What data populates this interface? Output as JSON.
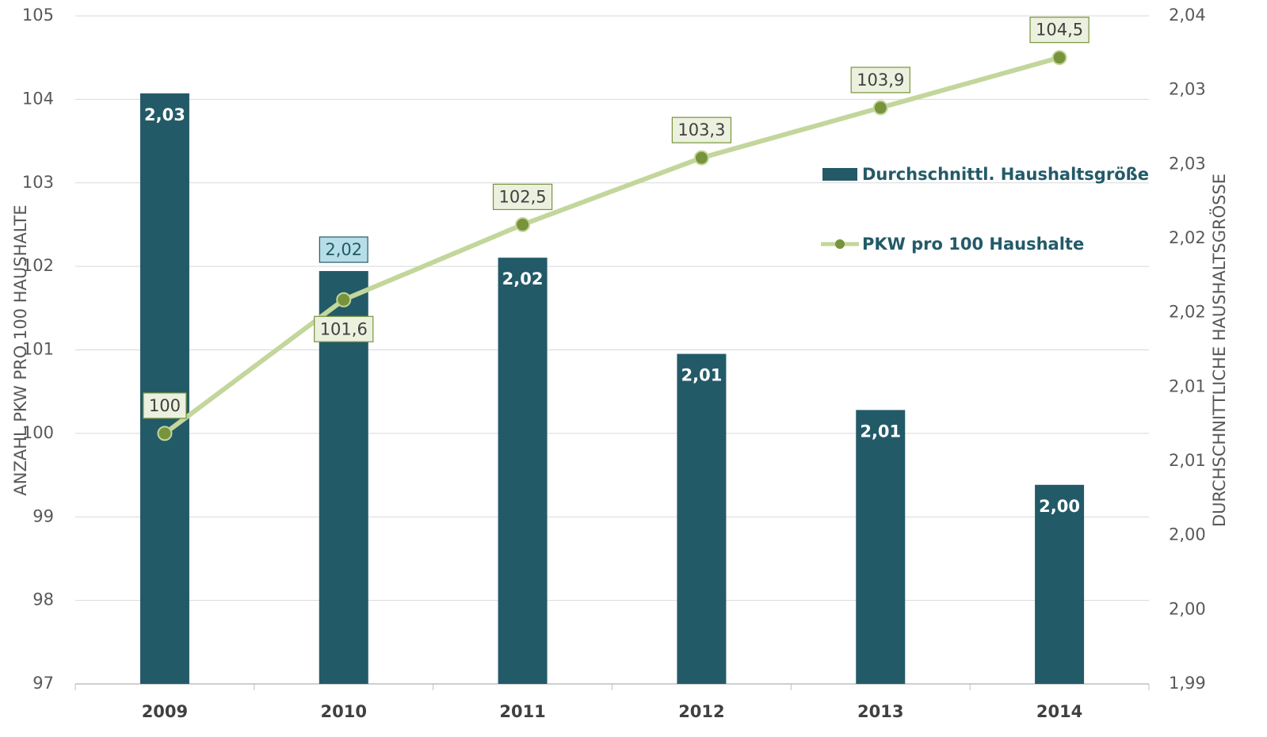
{
  "chart_data": {
    "type": "bar_line",
    "y_label": "ANZAHL PKW PRO 100 HAUSHALTE",
    "y2_label": "DURCHSCHNITTLICHE HAUSHALTSGRÖSSE",
    "categories": [
      "2009",
      "2010",
      "2011",
      "2012",
      "2013",
      "2014"
    ],
    "series": [
      {
        "name": "Durchschnittl. Haushaltsgröße",
        "type": "bar",
        "axis": "y2",
        "color": "#235a68",
        "values": [
          2.0342,
          2.0209,
          2.0219,
          2.0147,
          2.0105,
          2.0049
        ],
        "value_labels": [
          "2,03",
          "2,02",
          "2,02",
          "2,01",
          "2,01",
          "2,00"
        ]
      },
      {
        "name": "PKW pro 100 Haushalte",
        "type": "line",
        "color": "#c3d69b",
        "marker_color": "#77933c",
        "values": [
          100,
          101.6,
          102.5,
          103.3,
          103.9,
          104.5
        ],
        "value_labels": [
          "100",
          "101,6",
          "102,5",
          "103,3",
          "103,9",
          "104,5"
        ]
      }
    ],
    "ylim": [
      97,
      105
    ],
    "yticks": [
      97,
      98,
      99,
      100,
      101,
      102,
      103,
      104,
      105
    ],
    "y2lim": [
      1.99,
      2.04
    ],
    "y2ticks": [
      {
        "value": 1.99,
        "label": "1,99"
      },
      {
        "value": 1.99556,
        "label": "2,00"
      },
      {
        "value": 2.00111,
        "label": "2,00"
      },
      {
        "value": 2.00667,
        "label": "2,01"
      },
      {
        "value": 2.01222,
        "label": "2,01"
      },
      {
        "value": 2.01778,
        "label": "2,02"
      },
      {
        "value": 2.02333,
        "label": "2,02"
      },
      {
        "value": 2.02889,
        "label": "2,03"
      },
      {
        "value": 2.03444,
        "label": "2,03"
      },
      {
        "value": 2.04,
        "label": "2,04"
      }
    ],
    "grid": true
  }
}
